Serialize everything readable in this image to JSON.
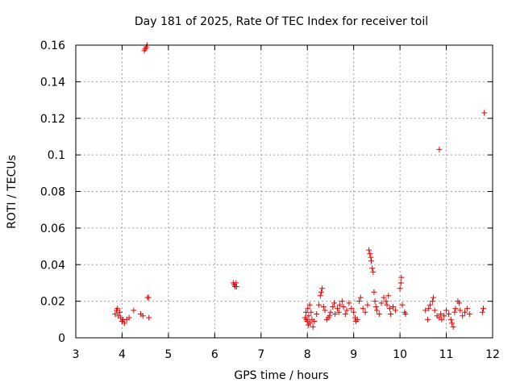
{
  "chart_data": {
    "type": "scatter",
    "title": "Day 181 of 2025, Rate Of TEC Index for receiver toil",
    "xlabel": "GPS time / hours",
    "ylabel": "ROTI / TECUs",
    "xlim": [
      3,
      12
    ],
    "ylim": [
      0,
      0.16
    ],
    "xticks": [
      3,
      4,
      5,
      6,
      7,
      8,
      9,
      10,
      11,
      12
    ],
    "yticks": [
      0,
      0.02,
      0.04,
      0.06,
      0.08,
      0.1,
      0.12,
      0.14,
      0.16
    ],
    "xtick_labels": [
      "3",
      "4",
      "5",
      "6",
      "7",
      "8",
      "9",
      "10",
      "11",
      "12"
    ],
    "ytick_labels": [
      "0",
      "0.02",
      "0.04",
      "0.06",
      "0.08",
      "0.1",
      "0.12",
      "0.14",
      "0.16"
    ],
    "grid": true,
    "marker": "plus",
    "color": "#e00000",
    "series": [
      {
        "name": "ROTI",
        "points": [
          [
            3.85,
            0.013
          ],
          [
            3.88,
            0.015
          ],
          [
            3.9,
            0.016
          ],
          [
            3.92,
            0.012
          ],
          [
            3.95,
            0.014
          ],
          [
            3.97,
            0.011
          ],
          [
            4.0,
            0.009
          ],
          [
            4.02,
            0.01
          ],
          [
            4.05,
            0.008
          ],
          [
            4.1,
            0.01
          ],
          [
            4.15,
            0.011
          ],
          [
            4.25,
            0.015
          ],
          [
            4.4,
            0.013
          ],
          [
            4.45,
            0.012
          ],
          [
            4.55,
            0.022
          ],
          [
            4.57,
            0.022
          ],
          [
            4.58,
            0.011
          ],
          [
            4.48,
            0.157
          ],
          [
            4.5,
            0.158
          ],
          [
            4.52,
            0.159
          ],
          [
            4.54,
            0.16
          ],
          [
            6.4,
            0.03
          ],
          [
            6.42,
            0.029
          ],
          [
            6.44,
            0.028
          ],
          [
            6.46,
            0.03
          ],
          [
            6.47,
            0.028
          ],
          [
            7.95,
            0.011
          ],
          [
            7.97,
            0.014
          ],
          [
            7.98,
            0.01
          ],
          [
            8.0,
            0.009
          ],
          [
            8.01,
            0.016
          ],
          [
            8.02,
            0.007
          ],
          [
            8.03,
            0.012
          ],
          [
            8.05,
            0.018
          ],
          [
            8.06,
            0.008
          ],
          [
            8.08,
            0.014
          ],
          [
            8.1,
            0.01
          ],
          [
            8.12,
            0.006
          ],
          [
            8.15,
            0.009
          ],
          [
            8.2,
            0.013
          ],
          [
            8.25,
            0.018
          ],
          [
            8.28,
            0.023
          ],
          [
            8.3,
            0.025
          ],
          [
            8.32,
            0.027
          ],
          [
            8.35,
            0.017
          ],
          [
            8.38,
            0.015
          ],
          [
            8.42,
            0.01
          ],
          [
            8.45,
            0.011
          ],
          [
            8.48,
            0.012
          ],
          [
            8.5,
            0.014
          ],
          [
            8.55,
            0.017
          ],
          [
            8.58,
            0.019
          ],
          [
            8.6,
            0.013
          ],
          [
            8.65,
            0.016
          ],
          [
            8.68,
            0.014
          ],
          [
            8.7,
            0.018
          ],
          [
            8.75,
            0.02
          ],
          [
            8.78,
            0.017
          ],
          [
            8.82,
            0.013
          ],
          [
            8.85,
            0.015
          ],
          [
            8.9,
            0.019
          ],
          [
            8.95,
            0.016
          ],
          [
            9.0,
            0.014
          ],
          [
            9.03,
            0.011
          ],
          [
            9.05,
            0.009
          ],
          [
            9.08,
            0.01
          ],
          [
            9.12,
            0.02
          ],
          [
            9.15,
            0.022
          ],
          [
            9.2,
            0.016
          ],
          [
            9.25,
            0.014
          ],
          [
            9.3,
            0.018
          ],
          [
            9.33,
            0.048
          ],
          [
            9.35,
            0.046
          ],
          [
            9.37,
            0.044
          ],
          [
            9.38,
            0.042
          ],
          [
            9.4,
            0.038
          ],
          [
            9.42,
            0.036
          ],
          [
            9.44,
            0.025
          ],
          [
            9.46,
            0.02
          ],
          [
            9.48,
            0.017
          ],
          [
            9.5,
            0.015
          ],
          [
            9.55,
            0.013
          ],
          [
            9.6,
            0.019
          ],
          [
            9.65,
            0.022
          ],
          [
            9.7,
            0.02
          ],
          [
            9.72,
            0.018
          ],
          [
            9.75,
            0.023
          ],
          [
            9.78,
            0.016
          ],
          [
            9.8,
            0.013
          ],
          [
            9.85,
            0.017
          ],
          [
            9.9,
            0.015
          ],
          [
            10.0,
            0.027
          ],
          [
            10.02,
            0.03
          ],
          [
            10.03,
            0.033
          ],
          [
            10.05,
            0.018
          ],
          [
            10.1,
            0.014
          ],
          [
            10.12,
            0.013
          ],
          [
            10.55,
            0.015
          ],
          [
            10.6,
            0.01
          ],
          [
            10.62,
            0.016
          ],
          [
            10.65,
            0.018
          ],
          [
            10.7,
            0.02
          ],
          [
            10.72,
            0.022
          ],
          [
            10.75,
            0.015
          ],
          [
            10.8,
            0.012
          ],
          [
            10.85,
            0.011
          ],
          [
            10.88,
            0.013
          ],
          [
            10.9,
            0.01
          ],
          [
            10.95,
            0.012
          ],
          [
            11.0,
            0.015
          ],
          [
            11.05,
            0.013
          ],
          [
            11.1,
            0.01
          ],
          [
            11.12,
            0.008
          ],
          [
            11.15,
            0.006
          ],
          [
            11.18,
            0.014
          ],
          [
            11.2,
            0.016
          ],
          [
            11.25,
            0.02
          ],
          [
            11.28,
            0.019
          ],
          [
            11.3,
            0.015
          ],
          [
            11.35,
            0.012
          ],
          [
            11.4,
            0.014
          ],
          [
            11.45,
            0.016
          ],
          [
            11.5,
            0.013
          ],
          [
            10.85,
            0.103
          ],
          [
            11.78,
            0.014
          ],
          [
            11.8,
            0.016
          ],
          [
            11.82,
            0.123
          ]
        ]
      }
    ]
  }
}
